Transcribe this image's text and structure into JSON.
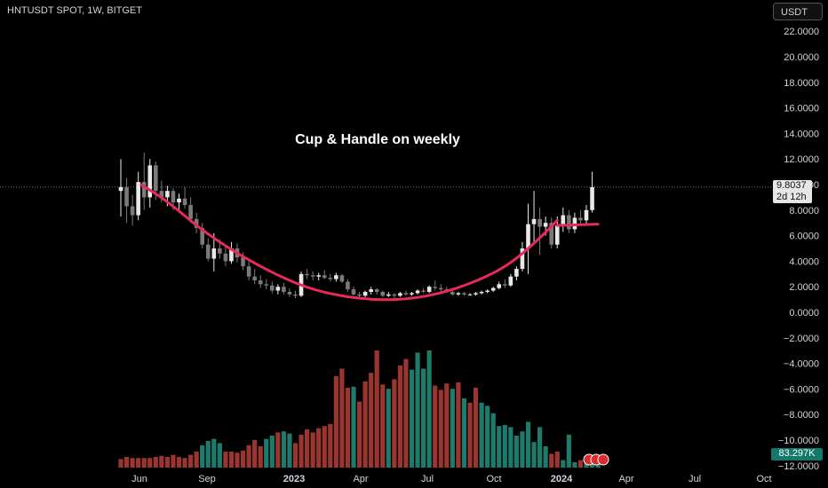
{
  "header": {
    "symbol": "HNTUSDT SPOT, 1W, BITGET"
  },
  "currency_button": "USDT",
  "price_tag": {
    "value": "9.8037",
    "countdown": "2d 12h"
  },
  "volume_tag": "83.297K",
  "annotation": "Cup & Handle on weekly",
  "chart_data": {
    "type": "candlestick",
    "title": "Cup & Handle on weekly",
    "y_ticks": [
      "22.0000",
      "20.0000",
      "18.0000",
      "16.0000",
      "14.0000",
      "12.0000",
      "10.0000",
      "8.0000",
      "6.0000",
      "4.0000",
      "2.0000",
      "0.0000",
      "−2.0000",
      "−4.0000",
      "−6.0000",
      "−8.0000",
      "−10.0000",
      "−12.0000"
    ],
    "x_ticks": [
      "Jun",
      "Sep",
      "2023",
      "Apr",
      "Jul",
      "Oct",
      "2024",
      "Apr",
      "Jul",
      "Oct"
    ],
    "ylim": [
      -12,
      23
    ],
    "last_price": 9.8037,
    "volume_last": "83.297K",
    "candles": [
      {
        "o": 9.5,
        "h": 12.0,
        "l": 7.5,
        "c": 9.8
      },
      {
        "o": 9.8,
        "h": 10.5,
        "l": 7.0,
        "c": 8.3
      },
      {
        "o": 8.3,
        "h": 9.2,
        "l": 6.8,
        "c": 7.6
      },
      {
        "o": 7.6,
        "h": 11.0,
        "l": 7.2,
        "c": 10.2
      },
      {
        "o": 10.2,
        "h": 12.5,
        "l": 8.0,
        "c": 9.0
      },
      {
        "o": 9.0,
        "h": 12.0,
        "l": 8.2,
        "c": 11.5
      },
      {
        "o": 11.5,
        "h": 11.8,
        "l": 8.8,
        "c": 9.5
      },
      {
        "o": 9.5,
        "h": 10.3,
        "l": 8.6,
        "c": 9.0
      },
      {
        "o": 9.0,
        "h": 9.9,
        "l": 8.3,
        "c": 9.5
      },
      {
        "o": 9.5,
        "h": 9.7,
        "l": 8.0,
        "c": 8.6
      },
      {
        "o": 8.6,
        "h": 9.3,
        "l": 7.8,
        "c": 8.9
      },
      {
        "o": 8.9,
        "h": 9.8,
        "l": 8.1,
        "c": 8.4
      },
      {
        "o": 8.4,
        "h": 9.0,
        "l": 7.0,
        "c": 7.3
      },
      {
        "o": 7.3,
        "h": 7.8,
        "l": 6.2,
        "c": 6.6
      },
      {
        "o": 6.6,
        "h": 7.0,
        "l": 5.0,
        "c": 5.3
      },
      {
        "o": 5.3,
        "h": 5.8,
        "l": 4.0,
        "c": 4.2
      },
      {
        "o": 4.2,
        "h": 6.2,
        "l": 3.2,
        "c": 5.0
      },
      {
        "o": 5.0,
        "h": 5.7,
        "l": 4.2,
        "c": 4.6
      },
      {
        "o": 4.6,
        "h": 5.1,
        "l": 3.6,
        "c": 4.0
      },
      {
        "o": 4.0,
        "h": 5.5,
        "l": 3.8,
        "c": 5.0
      },
      {
        "o": 5.0,
        "h": 5.4,
        "l": 3.9,
        "c": 4.3
      },
      {
        "o": 4.3,
        "h": 4.7,
        "l": 3.3,
        "c": 3.6
      },
      {
        "o": 3.6,
        "h": 4.0,
        "l": 2.5,
        "c": 2.8
      },
      {
        "o": 2.8,
        "h": 3.4,
        "l": 2.2,
        "c": 2.5
      },
      {
        "o": 2.5,
        "h": 2.9,
        "l": 1.9,
        "c": 2.2
      },
      {
        "o": 2.2,
        "h": 2.6,
        "l": 1.8,
        "c": 2.1
      },
      {
        "o": 2.1,
        "h": 2.4,
        "l": 1.5,
        "c": 1.7
      },
      {
        "o": 1.7,
        "h": 2.2,
        "l": 1.4,
        "c": 2.0
      },
      {
        "o": 2.0,
        "h": 2.3,
        "l": 1.4,
        "c": 1.6
      },
      {
        "o": 1.6,
        "h": 1.9,
        "l": 1.2,
        "c": 1.4
      },
      {
        "o": 1.4,
        "h": 1.7,
        "l": 1.1,
        "c": 1.3
      },
      {
        "o": 1.3,
        "h": 3.2,
        "l": 1.2,
        "c": 3.0
      },
      {
        "o": 3.0,
        "h": 3.4,
        "l": 2.6,
        "c": 2.9
      },
      {
        "o": 2.9,
        "h": 3.2,
        "l": 2.5,
        "c": 2.8
      },
      {
        "o": 2.8,
        "h": 3.1,
        "l": 2.5,
        "c": 2.9
      },
      {
        "o": 2.9,
        "h": 3.3,
        "l": 2.6,
        "c": 2.7
      },
      {
        "o": 2.7,
        "h": 3.0,
        "l": 2.4,
        "c": 2.6
      },
      {
        "o": 2.6,
        "h": 3.1,
        "l": 2.4,
        "c": 2.9
      },
      {
        "o": 2.9,
        "h": 3.0,
        "l": 2.3,
        "c": 2.4
      },
      {
        "o": 2.4,
        "h": 2.6,
        "l": 1.6,
        "c": 1.8
      },
      {
        "o": 1.8,
        "h": 2.0,
        "l": 1.3,
        "c": 1.4
      },
      {
        "o": 1.4,
        "h": 1.6,
        "l": 1.1,
        "c": 1.3
      },
      {
        "o": 1.3,
        "h": 1.7,
        "l": 1.2,
        "c": 1.6
      },
      {
        "o": 1.6,
        "h": 2.0,
        "l": 1.4,
        "c": 1.8
      },
      {
        "o": 1.8,
        "h": 1.9,
        "l": 1.4,
        "c": 1.6
      },
      {
        "o": 1.6,
        "h": 1.7,
        "l": 1.2,
        "c": 1.3
      },
      {
        "o": 1.3,
        "h": 1.6,
        "l": 1.2,
        "c": 1.4
      },
      {
        "o": 1.4,
        "h": 1.5,
        "l": 1.1,
        "c": 1.3
      },
      {
        "o": 1.3,
        "h": 1.6,
        "l": 1.2,
        "c": 1.5
      },
      {
        "o": 1.5,
        "h": 1.7,
        "l": 1.3,
        "c": 1.4
      },
      {
        "o": 1.4,
        "h": 1.6,
        "l": 1.3,
        "c": 1.5
      },
      {
        "o": 1.5,
        "h": 1.8,
        "l": 1.4,
        "c": 1.7
      },
      {
        "o": 1.7,
        "h": 1.9,
        "l": 1.5,
        "c": 1.6
      },
      {
        "o": 1.6,
        "h": 2.1,
        "l": 1.5,
        "c": 2.0
      },
      {
        "o": 2.0,
        "h": 2.5,
        "l": 1.7,
        "c": 1.9
      },
      {
        "o": 1.9,
        "h": 2.2,
        "l": 1.6,
        "c": 1.8
      },
      {
        "o": 1.8,
        "h": 2.0,
        "l": 1.5,
        "c": 1.6
      },
      {
        "o": 1.6,
        "h": 1.8,
        "l": 1.3,
        "c": 1.4
      },
      {
        "o": 1.4,
        "h": 1.6,
        "l": 1.3,
        "c": 1.5
      },
      {
        "o": 1.5,
        "h": 1.6,
        "l": 1.3,
        "c": 1.4
      },
      {
        "o": 1.4,
        "h": 1.5,
        "l": 1.3,
        "c": 1.4
      },
      {
        "o": 1.4,
        "h": 1.6,
        "l": 1.3,
        "c": 1.5
      },
      {
        "o": 1.5,
        "h": 1.7,
        "l": 1.4,
        "c": 1.6
      },
      {
        "o": 1.6,
        "h": 1.8,
        "l": 1.5,
        "c": 1.7
      },
      {
        "o": 1.7,
        "h": 2.0,
        "l": 1.6,
        "c": 1.9
      },
      {
        "o": 1.9,
        "h": 2.4,
        "l": 1.8,
        "c": 2.2
      },
      {
        "o": 2.2,
        "h": 2.6,
        "l": 1.9,
        "c": 2.1
      },
      {
        "o": 2.1,
        "h": 3.0,
        "l": 2.0,
        "c": 2.8
      },
      {
        "o": 2.8,
        "h": 3.6,
        "l": 2.5,
        "c": 3.4
      },
      {
        "o": 3.4,
        "h": 5.5,
        "l": 3.2,
        "c": 5.0
      },
      {
        "o": 5.0,
        "h": 8.5,
        "l": 3.0,
        "c": 6.9
      },
      {
        "o": 6.9,
        "h": 9.5,
        "l": 5.5,
        "c": 7.3
      },
      {
        "o": 7.3,
        "h": 8.2,
        "l": 4.5,
        "c": 6.7
      },
      {
        "o": 6.7,
        "h": 7.5,
        "l": 6.0,
        "c": 7.0
      },
      {
        "o": 7.0,
        "h": 7.4,
        "l": 5.0,
        "c": 5.3
      },
      {
        "o": 5.3,
        "h": 7.5,
        "l": 5.0,
        "c": 6.8
      },
      {
        "o": 6.8,
        "h": 8.2,
        "l": 6.3,
        "c": 7.6
      },
      {
        "o": 7.6,
        "h": 8.0,
        "l": 6.2,
        "c": 6.5
      },
      {
        "o": 6.5,
        "h": 7.8,
        "l": 6.2,
        "c": 7.4
      },
      {
        "o": 7.4,
        "h": 8.0,
        "l": 6.9,
        "c": 7.2
      },
      {
        "o": 7.2,
        "h": 8.4,
        "l": 6.9,
        "c": 8.0
      },
      {
        "o": 8.0,
        "h": 11.0,
        "l": 7.8,
        "c": 9.8
      }
    ],
    "volume": [
      {
        "v": 0.08,
        "up": false
      },
      {
        "v": 0.1,
        "up": false
      },
      {
        "v": 0.09,
        "up": false
      },
      {
        "v": 0.09,
        "up": false
      },
      {
        "v": 0.09,
        "up": false
      },
      {
        "v": 0.09,
        "up": false
      },
      {
        "v": 0.1,
        "up": false
      },
      {
        "v": 0.11,
        "up": false
      },
      {
        "v": 0.1,
        "up": false
      },
      {
        "v": 0.12,
        "up": false
      },
      {
        "v": 0.1,
        "up": false
      },
      {
        "v": 0.09,
        "up": false
      },
      {
        "v": 0.12,
        "up": false
      },
      {
        "v": 0.15,
        "up": false
      },
      {
        "v": 0.21,
        "up": true
      },
      {
        "v": 0.25,
        "up": true
      },
      {
        "v": 0.27,
        "up": true
      },
      {
        "v": 0.23,
        "up": true
      },
      {
        "v": 0.15,
        "up": false
      },
      {
        "v": 0.15,
        "up": false
      },
      {
        "v": 0.14,
        "up": false
      },
      {
        "v": 0.16,
        "up": false
      },
      {
        "v": 0.21,
        "up": false
      },
      {
        "v": 0.26,
        "up": false
      },
      {
        "v": 0.2,
        "up": false
      },
      {
        "v": 0.27,
        "up": true
      },
      {
        "v": 0.3,
        "up": true
      },
      {
        "v": 0.33,
        "up": false
      },
      {
        "v": 0.34,
        "up": true
      },
      {
        "v": 0.32,
        "up": true
      },
      {
        "v": 0.23,
        "up": false
      },
      {
        "v": 0.31,
        "up": false
      },
      {
        "v": 0.36,
        "up": false
      },
      {
        "v": 0.33,
        "up": false
      },
      {
        "v": 0.37,
        "up": false
      },
      {
        "v": 0.39,
        "up": false
      },
      {
        "v": 0.41,
        "up": false
      },
      {
        "v": 0.86,
        "up": false
      },
      {
        "v": 0.93,
        "up": false
      },
      {
        "v": 0.75,
        "up": false
      },
      {
        "v": 0.76,
        "up": true
      },
      {
        "v": 0.62,
        "up": false
      },
      {
        "v": 0.81,
        "up": false
      },
      {
        "v": 0.89,
        "up": false
      },
      {
        "v": 1.1,
        "up": false
      },
      {
        "v": 0.78,
        "up": false
      },
      {
        "v": 0.74,
        "up": true
      },
      {
        "v": 0.83,
        "up": false
      },
      {
        "v": 0.96,
        "up": false
      },
      {
        "v": 1.02,
        "up": false
      },
      {
        "v": 0.92,
        "up": true
      },
      {
        "v": 1.08,
        "up": true
      },
      {
        "v": 0.93,
        "up": true
      },
      {
        "v": 1.1,
        "up": true
      },
      {
        "v": 0.77,
        "up": false
      },
      {
        "v": 0.73,
        "up": false
      },
      {
        "v": 0.79,
        "up": false
      },
      {
        "v": 0.74,
        "up": true
      },
      {
        "v": 0.8,
        "up": false
      },
      {
        "v": 0.65,
        "up": true
      },
      {
        "v": 0.61,
        "up": false
      },
      {
        "v": 0.75,
        "up": false
      },
      {
        "v": 0.61,
        "up": true
      },
      {
        "v": 0.58,
        "up": true
      },
      {
        "v": 0.51,
        "up": true
      },
      {
        "v": 0.39,
        "up": true
      },
      {
        "v": 0.4,
        "up": true
      },
      {
        "v": 0.38,
        "up": true
      },
      {
        "v": 0.3,
        "up": true
      },
      {
        "v": 0.34,
        "up": true
      },
      {
        "v": 0.43,
        "up": true
      },
      {
        "v": 0.24,
        "up": true
      },
      {
        "v": 0.38,
        "up": true
      },
      {
        "v": 0.2,
        "up": true
      },
      {
        "v": 0.13,
        "up": false
      },
      {
        "v": 0.15,
        "up": false
      },
      {
        "v": 0.07,
        "up": true
      },
      {
        "v": 0.31,
        "up": true
      },
      {
        "v": 0.05,
        "up": true
      },
      {
        "v": 0.07,
        "up": false
      },
      {
        "v": 0.05,
        "up": true
      },
      {
        "v": 0.09,
        "up": true
      },
      {
        "v": 0.07,
        "up": true
      }
    ],
    "cup_curve": [
      {
        "i": 3.5,
        "p": 10.0
      },
      {
        "i": 8,
        "p": 8.7
      },
      {
        "i": 14,
        "p": 6.4
      },
      {
        "i": 20,
        "p": 4.6
      },
      {
        "i": 26,
        "p": 3.1
      },
      {
        "i": 32,
        "p": 1.9
      },
      {
        "i": 38,
        "p": 1.25
      },
      {
        "i": 44,
        "p": 0.95
      },
      {
        "i": 50,
        "p": 1.05
      },
      {
        "i": 56,
        "p": 1.6
      },
      {
        "i": 62,
        "p": 2.6
      },
      {
        "i": 67,
        "p": 3.8
      },
      {
        "i": 72,
        "p": 5.8
      },
      {
        "i": 75,
        "p": 7.2
      }
    ],
    "handle_line": [
      {
        "i": 75,
        "p": 6.8
      },
      {
        "i": 82,
        "p": 6.9
      }
    ],
    "colors": {
      "up_candle": "#e8e8e8",
      "down_candle": "#7a7a7a",
      "vol_up": "#1e7a6b",
      "vol_down": "#9a3530",
      "cup": "#e8295a"
    }
  }
}
